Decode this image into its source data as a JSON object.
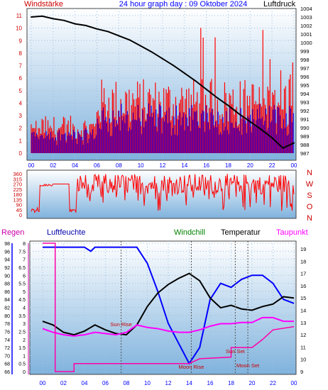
{
  "header": {
    "left_label": "Windstärke",
    "title": "24 hour graph day : 09 Oktober 2024",
    "right_label": "Luftdruck"
  },
  "wind_panel": {
    "left_ticks": [
      "0",
      "1",
      "2",
      "3",
      "4",
      "5",
      "6",
      "7",
      "8",
      "9",
      "10",
      "11"
    ],
    "right_ticks": [
      "987",
      "988",
      "989",
      "990",
      "991",
      "992",
      "993",
      "994",
      "995",
      "996",
      "997",
      "998",
      "999",
      "1000",
      "1001",
      "1002",
      "1003",
      "1004"
    ],
    "x_ticks": [
      "00",
      "02",
      "04",
      "06",
      "08",
      "10",
      "12",
      "14",
      "16",
      "18",
      "20",
      "22",
      "00"
    ]
  },
  "direction_panel": {
    "left_ticks": [
      "0",
      "45",
      "90",
      "135",
      "180",
      "225",
      "270",
      "315",
      "360"
    ],
    "compass": [
      "N",
      "W",
      "S",
      "O",
      "N"
    ]
  },
  "lower_panel": {
    "labels": {
      "rain": "Regen",
      "humidity": "Luftfeuchte",
      "windchill": "Windchill",
      "temperature": "Temperatur",
      "dewpoint": "Taupunkt"
    },
    "rain_ticks": [
      "0",
      "0.5",
      "1",
      "1.5",
      "2",
      "2.5",
      "3",
      "3.5",
      "4",
      "4.5",
      "5",
      "5.5",
      "6",
      "6.5",
      "7",
      "7.5",
      "8"
    ],
    "humidity_ticks": [
      "66",
      "68",
      "70",
      "72",
      "74",
      "76",
      "78",
      "80",
      "82",
      "84",
      "86",
      "88",
      "90",
      "92",
      "94",
      "96",
      "98"
    ],
    "temp_ticks": [
      "9",
      "10",
      "11",
      "12",
      "13",
      "14",
      "15",
      "16",
      "17",
      "18",
      "19"
    ],
    "x_ticks": [
      "00",
      "02",
      "04",
      "06",
      "08",
      "10",
      "12",
      "14",
      "16",
      "18",
      "20",
      "22",
      "00"
    ],
    "events": {
      "sun_rise": "Sun Rise",
      "moon_rise": "Moon Rise",
      "sun_set": "Sun Set",
      "moon_set": "Moon Set"
    }
  },
  "colors": {
    "wind_gust": "#ff0000",
    "wind_avg": "#0000ff",
    "pressure": "#000000",
    "direction": "#ff0000",
    "rain": "#ff00aa",
    "humidity": "#0000ff",
    "temperature": "#000000",
    "dewpoint": "#ff00ff",
    "windchill": "#008000",
    "sky_top": "#ffffff",
    "sky_bottom": "#7fb2dd",
    "axis_blue": "#0000ff",
    "label_red": "#cc0000"
  },
  "chart_data": [
    {
      "type": "line",
      "title": "24 hour graph day : 09 Oktober 2024",
      "x_unit": "hour",
      "series": [
        {
          "name": "Luftdruck",
          "axis": "right",
          "points": [
            [
              0,
              1003.0
            ],
            [
              1,
              1003.1
            ],
            [
              2,
              1002.8
            ],
            [
              3,
              1002.6
            ],
            [
              4,
              1002.2
            ],
            [
              5,
              1002.0
            ],
            [
              6,
              1001.6
            ],
            [
              7,
              1001.3
            ],
            [
              8,
              1000.8
            ],
            [
              9,
              1000.3
            ],
            [
              10,
              999.6
            ],
            [
              11,
              998.9
            ],
            [
              12,
              998.1
            ],
            [
              13,
              997.3
            ],
            [
              14,
              996.4
            ],
            [
              15,
              995.5
            ],
            [
              16,
              994.5
            ],
            [
              17,
              993.5
            ],
            [
              18,
              992.6
            ],
            [
              19,
              991.6
            ],
            [
              20,
              990.7
            ],
            [
              21,
              989.8
            ],
            [
              22,
              988.8
            ],
            [
              23,
              987.6
            ],
            [
              24,
              988.2
            ]
          ]
        },
        {
          "name": "Windstärke",
          "axis": "left",
          "summary": "gusts 1-6, peaks near 11 around 16:00 and 22:00"
        }
      ],
      "left_range": [
        0,
        11
      ],
      "right_range": [
        987,
        1004
      ]
    },
    {
      "type": "line",
      "series": [
        {
          "name": "Windrichtung",
          "summary": "mostly 270-360 from 04:00 onward, 0-90 before"
        }
      ],
      "y_range": [
        0,
        360
      ]
    },
    {
      "type": "line",
      "series": [
        {
          "name": "Luftfeuchte",
          "axis": "humidity",
          "points": [
            [
              0,
              97
            ],
            [
              4,
              97
            ],
            [
              4.6,
              96
            ],
            [
              5,
              97
            ],
            [
              9,
              97
            ],
            [
              10,
              93
            ],
            [
              11,
              86
            ],
            [
              12,
              78
            ],
            [
              13,
              73
            ],
            [
              14,
              68
            ],
            [
              15,
              72
            ],
            [
              16,
              84
            ],
            [
              17,
              88
            ],
            [
              18,
              87
            ],
            [
              19,
              89
            ],
            [
              20,
              90
            ],
            [
              21,
              90
            ],
            [
              22,
              88
            ],
            [
              23,
              84
            ],
            [
              24,
              83
            ]
          ]
        },
        {
          "name": "Temperatur",
          "axis": "temp",
          "points": [
            [
              0,
              13.1
            ],
            [
              1,
              12.8
            ],
            [
              2,
              12.2
            ],
            [
              3,
              12.0
            ],
            [
              4,
              12.3
            ],
            [
              5,
              12.8
            ],
            [
              6,
              12.4
            ],
            [
              7,
              12.1
            ],
            [
              8,
              12.0
            ],
            [
              9,
              12.8
            ],
            [
              10,
              14.3
            ],
            [
              11,
              15.4
            ],
            [
              12,
              16.1
            ],
            [
              13,
              16.6
            ],
            [
              14,
              17.0
            ],
            [
              15,
              16.4
            ],
            [
              16,
              15.0
            ],
            [
              17,
              14.2
            ],
            [
              18,
              14.4
            ],
            [
              19,
              14.1
            ],
            [
              20,
              14.0
            ],
            [
              21,
              14.3
            ],
            [
              22,
              14.5
            ],
            [
              23,
              15.1
            ],
            [
              24,
              15.0
            ]
          ]
        },
        {
          "name": "Taupunkt",
          "axis": "temp",
          "points": [
            [
              0,
              12.5
            ],
            [
              1,
              12.2
            ],
            [
              2,
              12.0
            ],
            [
              3,
              11.9
            ],
            [
              4,
              12.0
            ],
            [
              5,
              12.2
            ],
            [
              6,
              12.1
            ],
            [
              7,
              12.0
            ],
            [
              8,
              12.2
            ],
            [
              9,
              12.8
            ],
            [
              10,
              12.6
            ],
            [
              11,
              12.5
            ],
            [
              12,
              12.3
            ],
            [
              13,
              12.2
            ],
            [
              14,
              12.2
            ],
            [
              15,
              12.4
            ],
            [
              16,
              12.7
            ],
            [
              17,
              12.9
            ],
            [
              18,
              12.9
            ],
            [
              19,
              13.0
            ],
            [
              20,
              13.0
            ],
            [
              21,
              13.4
            ],
            [
              22,
              13.4
            ],
            [
              23,
              13.1
            ],
            [
              24,
              13.1
            ]
          ]
        },
        {
          "name": "Regen",
          "axis": "rain",
          "points": [
            [
              0,
              8
            ],
            [
              1.2,
              8
            ],
            [
              1.2,
              0
            ],
            [
              3,
              0
            ],
            [
              3,
              0.5
            ],
            [
              13,
              0.5
            ],
            [
              14,
              0.5
            ],
            [
              15,
              0.8
            ],
            [
              18,
              0.9
            ],
            [
              18,
              1.5
            ],
            [
              20,
              1.5
            ],
            [
              21,
              2.0
            ],
            [
              22,
              2.6
            ],
            [
              24,
              2.8
            ]
          ]
        }
      ],
      "rain_range": [
        0,
        8
      ],
      "humidity_range": [
        66,
        98
      ],
      "temp_range": [
        9,
        19
      ],
      "events": [
        {
          "label": "Sun Rise",
          "hour": 7.5
        },
        {
          "label": "Moon Rise",
          "hour": 14.2
        },
        {
          "label": "Sun Set",
          "hour": 18.4
        },
        {
          "label": "Moon Set",
          "hour": 19.6
        }
      ]
    }
  ]
}
